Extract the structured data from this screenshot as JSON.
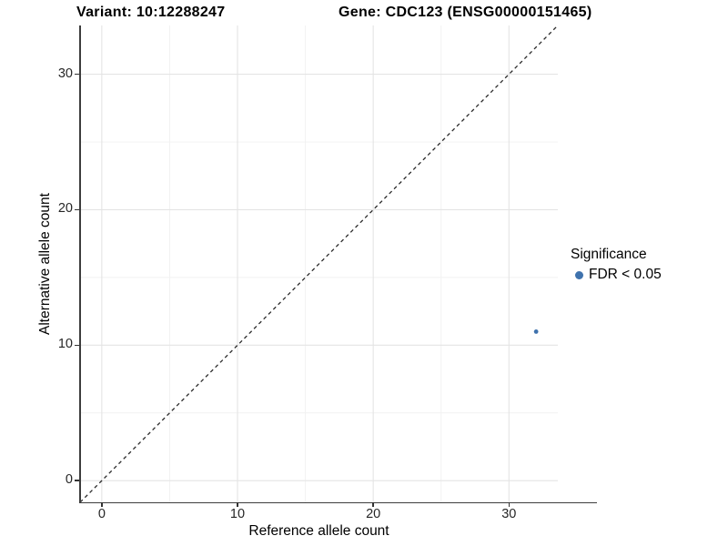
{
  "header": {
    "variant_title": "Variant: 10:12288247",
    "gene_title": "Gene: CDC123 (ENSG00000151465)"
  },
  "chart_data": {
    "type": "scatter",
    "title": "Variant: 10:12288247 — Gene: CDC123 (ENSG00000151465)",
    "xlabel": "Reference allele count",
    "ylabel": "Alternative allele count",
    "xlim": [
      -1.6,
      33.6
    ],
    "ylim": [
      -1.6,
      33.6
    ],
    "x_major_ticks": [
      0,
      10,
      20,
      30
    ],
    "y_major_ticks": [
      0,
      10,
      20,
      30
    ],
    "x_minor_ticks": [
      5,
      15,
      25
    ],
    "y_minor_ticks": [
      5,
      15,
      25
    ],
    "grid": "major+minor",
    "identity_line": {
      "style": "dashed",
      "slope": 1,
      "intercept": 0
    },
    "points": [
      {
        "x": 32,
        "y": 11,
        "significance": "FDR < 0.05"
      }
    ],
    "legend": {
      "position": "right",
      "title": "Significance",
      "items": [
        {
          "label": "FDR < 0.05",
          "color": "#3f72ad",
          "marker": "circle"
        }
      ]
    }
  },
  "colors": {
    "point": "#3f72ad",
    "grid_major": "#e4e4e4",
    "grid_minor": "#f1f1f1",
    "axis_line": "#3d3d3d",
    "tick_mark": "#333333",
    "dashed_line": "#2a2a2a",
    "background": "#ffffff"
  }
}
